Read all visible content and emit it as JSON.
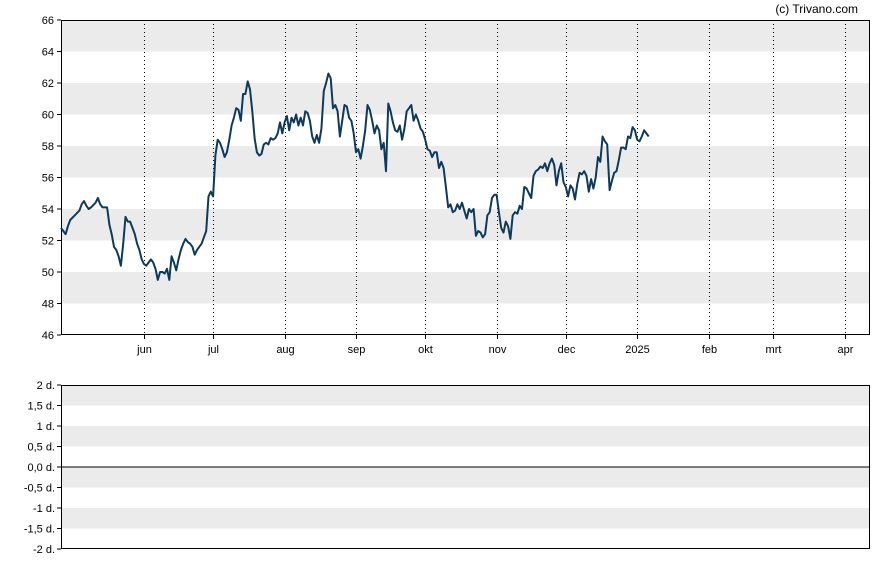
{
  "credit": "(c) Trivano.com",
  "chart_data": [
    {
      "type": "line",
      "ylim": [
        46,
        66
      ],
      "yticks": [
        "46",
        "48",
        "50",
        "52",
        "54",
        "56",
        "58",
        "60",
        "62",
        "64",
        "66"
      ],
      "xlabels": [
        {
          "label": "jun",
          "day": 36
        },
        {
          "label": "jul",
          "day": 66
        },
        {
          "label": "aug",
          "day": 97
        },
        {
          "label": "sep",
          "day": 128
        },
        {
          "label": "okt",
          "day": 158
        },
        {
          "label": "nov",
          "day": 189
        },
        {
          "label": "dec",
          "day": 219
        },
        {
          "label": "2025",
          "day": 250
        },
        {
          "label": "feb",
          "day": 281
        },
        {
          "label": "mrt",
          "day": 309
        },
        {
          "label": "apr",
          "day": 340
        }
      ],
      "xrange_days": [
        0,
        351
      ],
      "series": [
        {
          "color": "#0e3a5a",
          "points": [
            [
              0,
              52.8
            ],
            [
              1,
              52.6
            ],
            [
              2,
              52.4
            ],
            [
              3,
              52.9
            ],
            [
              4,
              53.3
            ],
            [
              6,
              53.6
            ],
            [
              8,
              53.9
            ],
            [
              9,
              54.3
            ],
            [
              10,
              54.5
            ],
            [
              11,
              54.2
            ],
            [
              12,
              54.0
            ],
            [
              13,
              54.1
            ],
            [
              15,
              54.4
            ],
            [
              16,
              54.7
            ],
            [
              17,
              54.3
            ],
            [
              18,
              54.1
            ],
            [
              20,
              54.1
            ],
            [
              21,
              53.0
            ],
            [
              22,
              52.4
            ],
            [
              23,
              51.6
            ],
            [
              24,
              51.4
            ],
            [
              25,
              51.0
            ],
            [
              26,
              50.4
            ],
            [
              27,
              51.8
            ],
            [
              28,
              53.5
            ],
            [
              29,
              53.2
            ],
            [
              30,
              53.2
            ],
            [
              31,
              52.8
            ],
            [
              32,
              52.4
            ],
            [
              33,
              51.8
            ],
            [
              34,
              51.4
            ],
            [
              35,
              50.8
            ],
            [
              36,
              50.5
            ],
            [
              37,
              50.4
            ],
            [
              38,
              50.6
            ],
            [
              39,
              50.8
            ],
            [
              40,
              50.6
            ],
            [
              41,
              50.2
            ],
            [
              42,
              49.5
            ],
            [
              43,
              50.0
            ],
            [
              44,
              50.0
            ],
            [
              45,
              49.9
            ],
            [
              46,
              50.2
            ],
            [
              47,
              49.5
            ],
            [
              48,
              51.0
            ],
            [
              49,
              50.6
            ],
            [
              50,
              50.1
            ],
            [
              51,
              50.8
            ],
            [
              52,
              51.4
            ],
            [
              53,
              51.8
            ],
            [
              54,
              52.1
            ],
            [
              55,
              51.9
            ],
            [
              56,
              51.8
            ],
            [
              57,
              51.6
            ],
            [
              58,
              51.1
            ],
            [
              59,
              51.4
            ],
            [
              60,
              51.6
            ],
            [
              61,
              51.8
            ],
            [
              62,
              52.2
            ],
            [
              63,
              52.6
            ],
            [
              64,
              54.8
            ],
            [
              65,
              55.1
            ],
            [
              66,
              54.8
            ],
            [
              67,
              57.4
            ],
            [
              68,
              58.4
            ],
            [
              69,
              58.2
            ],
            [
              70,
              57.8
            ],
            [
              71,
              57.3
            ],
            [
              72,
              57.6
            ],
            [
              73,
              58.4
            ],
            [
              74,
              59.3
            ],
            [
              75,
              59.8
            ],
            [
              76,
              60.4
            ],
            [
              77,
              60.3
            ],
            [
              78,
              59.6
            ],
            [
              79,
              61.3
            ],
            [
              80,
              61.3
            ],
            [
              81,
              62.1
            ],
            [
              82,
              61.6
            ],
            [
              83,
              60.2
            ],
            [
              84,
              58.5
            ],
            [
              85,
              57.6
            ],
            [
              86,
              57.4
            ],
            [
              87,
              57.5
            ],
            [
              88,
              58.1
            ],
            [
              89,
              58.2
            ],
            [
              90,
              58.1
            ],
            [
              91,
              58.5
            ],
            [
              92,
              58.4
            ],
            [
              93,
              58.5
            ],
            [
              94,
              58.8
            ],
            [
              95,
              59.5
            ],
            [
              96,
              58.8
            ],
            [
              97,
              59.5
            ],
            [
              98,
              59.9
            ],
            [
              99,
              59.0
            ],
            [
              100,
              59.8
            ],
            [
              101,
              59.5
            ],
            [
              102,
              60.0
            ],
            [
              103,
              59.3
            ],
            [
              104,
              59.8
            ],
            [
              105,
              59.3
            ],
            [
              106,
              60.2
            ],
            [
              107,
              60.1
            ],
            [
              108,
              59.6
            ],
            [
              109,
              58.6
            ],
            [
              110,
              58.2
            ],
            [
              111,
              58.7
            ],
            [
              112,
              58.2
            ],
            [
              113,
              59.1
            ],
            [
              114,
              61.5
            ],
            [
              115,
              62.0
            ],
            [
              116,
              62.6
            ],
            [
              117,
              62.3
            ],
            [
              118,
              60.4
            ],
            [
              119,
              60.6
            ],
            [
              120,
              60.2
            ],
            [
              121,
              58.6
            ],
            [
              122,
              59.6
            ],
            [
              123,
              60.6
            ],
            [
              124,
              60.5
            ],
            [
              125,
              59.8
            ],
            [
              126,
              59.6
            ],
            [
              127,
              58.8
            ],
            [
              128,
              57.6
            ],
            [
              129,
              57.8
            ],
            [
              130,
              57.2
            ],
            [
              131,
              58.0
            ],
            [
              132,
              59.0
            ],
            [
              133,
              60.6
            ],
            [
              134,
              60.3
            ],
            [
              135,
              59.6
            ],
            [
              136,
              58.8
            ],
            [
              137,
              59.3
            ],
            [
              138,
              59.0
            ],
            [
              139,
              57.8
            ],
            [
              140,
              58.2
            ],
            [
              141,
              56.4
            ],
            [
              142,
              60.7
            ],
            [
              143,
              60.2
            ],
            [
              144,
              59.5
            ],
            [
              145,
              59.0
            ],
            [
              146,
              58.9
            ],
            [
              147,
              59.3
            ],
            [
              148,
              58.4
            ],
            [
              149,
              59.1
            ],
            [
              150,
              60.2
            ],
            [
              151,
              60.4
            ],
            [
              152,
              60.6
            ],
            [
              153,
              59.6
            ],
            [
              154,
              60.0
            ],
            [
              155,
              59.6
            ],
            [
              156,
              59.1
            ],
            [
              157,
              58.9
            ],
            [
              158,
              58.4
            ],
            [
              159,
              57.8
            ],
            [
              160,
              57.7
            ],
            [
              161,
              57.3
            ],
            [
              162,
              57.6
            ],
            [
              163,
              57.6
            ],
            [
              164,
              56.6
            ],
            [
              165,
              57.0
            ],
            [
              166,
              56.6
            ],
            [
              167,
              55.4
            ],
            [
              168,
              54.1
            ],
            [
              169,
              54.3
            ],
            [
              170,
              53.8
            ],
            [
              171,
              53.9
            ],
            [
              172,
              54.3
            ],
            [
              173,
              54.0
            ],
            [
              174,
              54.4
            ],
            [
              175,
              53.9
            ],
            [
              176,
              53.4
            ],
            [
              177,
              54.0
            ],
            [
              178,
              53.8
            ],
            [
              179,
              54.0
            ],
            [
              180,
              52.3
            ],
            [
              181,
              52.6
            ],
            [
              182,
              52.5
            ],
            [
              183,
              52.2
            ],
            [
              184,
              52.4
            ],
            [
              185,
              53.6
            ],
            [
              186,
              53.8
            ],
            [
              187,
              54.7
            ],
            [
              188,
              54.9
            ],
            [
              189,
              54.9
            ],
            [
              190,
              53.8
            ],
            [
              191,
              52.8
            ],
            [
              192,
              52.5
            ],
            [
              193,
              53.2
            ],
            [
              194,
              52.9
            ],
            [
              195,
              52.1
            ],
            [
              196,
              53.6
            ],
            [
              197,
              53.8
            ],
            [
              198,
              53.7
            ],
            [
              199,
              54.2
            ],
            [
              200,
              54.0
            ],
            [
              201,
              55.4
            ],
            [
              202,
              55.3
            ],
            [
              203,
              55.0
            ],
            [
              204,
              54.7
            ],
            [
              205,
              56.1
            ],
            [
              206,
              56.4
            ],
            [
              207,
              56.5
            ],
            [
              208,
              56.7
            ],
            [
              209,
              56.6
            ],
            [
              210,
              56.9
            ],
            [
              211,
              56.4
            ],
            [
              212,
              56.9
            ],
            [
              213,
              57.2
            ],
            [
              214,
              56.8
            ],
            [
              215,
              55.5
            ],
            [
              216,
              56.4
            ],
            [
              217,
              56.9
            ],
            [
              218,
              55.7
            ],
            [
              219,
              55.4
            ],
            [
              220,
              54.8
            ],
            [
              221,
              55.5
            ],
            [
              222,
              55.3
            ],
            [
              223,
              54.6
            ],
            [
              224,
              55.6
            ],
            [
              225,
              56.3
            ],
            [
              226,
              56.2
            ],
            [
              227,
              56.4
            ],
            [
              228,
              56.1
            ],
            [
              229,
              55.1
            ],
            [
              230,
              55.9
            ],
            [
              231,
              55.3
            ],
            [
              232,
              56.0
            ],
            [
              233,
              57.3
            ],
            [
              234,
              57.0
            ],
            [
              235,
              58.6
            ],
            [
              236,
              58.3
            ],
            [
              237,
              58.1
            ],
            [
              238,
              55.2
            ],
            [
              239,
              55.8
            ],
            [
              240,
              56.3
            ],
            [
              241,
              56.4
            ],
            [
              242,
              57.1
            ],
            [
              243,
              57.9
            ],
            [
              244,
              57.9
            ],
            [
              245,
              57.8
            ],
            [
              246,
              58.6
            ],
            [
              247,
              58.5
            ],
            [
              248,
              59.2
            ],
            [
              249,
              59.0
            ],
            [
              250,
              58.4
            ],
            [
              251,
              58.3
            ],
            [
              252,
              58.6
            ],
            [
              253,
              59.0
            ],
            [
              254,
              58.8
            ],
            [
              255,
              58.6
            ]
          ]
        }
      ]
    },
    {
      "type": "line",
      "ylim": [
        -2,
        2
      ],
      "yticks": [
        "-2 d.",
        "-1,5 d.",
        "-1 d.",
        "-0,5 d.",
        "0,0 d.",
        "0,5 d.",
        "1 d.",
        "1,5 d.",
        "2 d."
      ],
      "series": []
    }
  ]
}
